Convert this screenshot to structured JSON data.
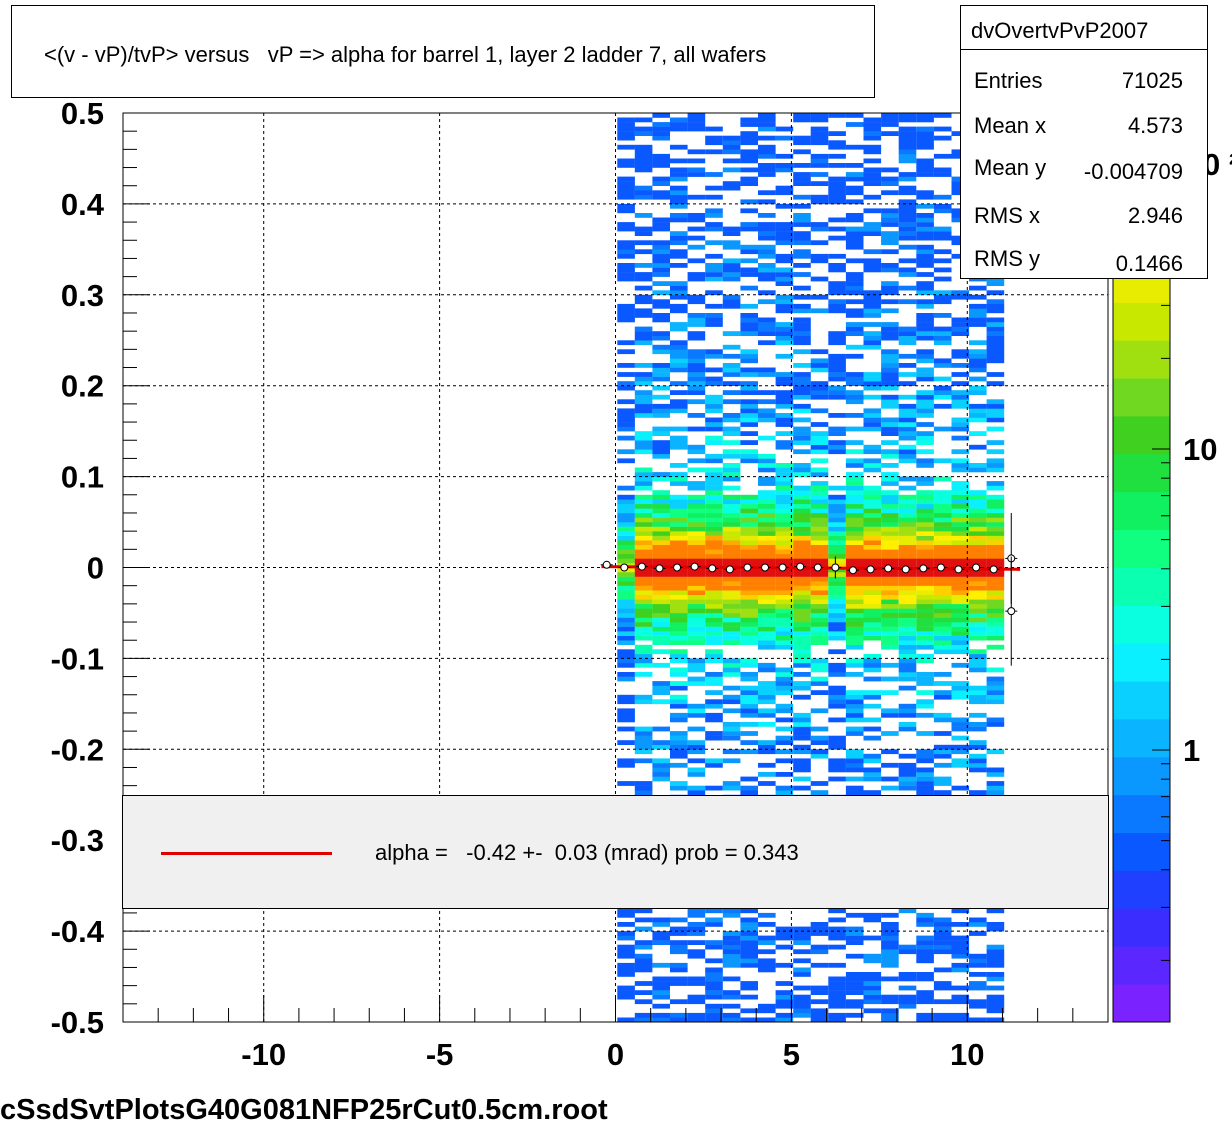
{
  "title": "<(v - vP)/tvP> versus   vP => alpha for barrel 1, layer 2 ladder 7, all wafers",
  "stats": {
    "name": "dvOvertvPvP2007",
    "rows": [
      {
        "label": "Entries",
        "value": "71025"
      },
      {
        "label": "Mean x",
        "value": "4.573"
      },
      {
        "label": "Mean y",
        "value": "-0.004709"
      },
      {
        "label": "RMS x",
        "value": "2.946"
      },
      {
        "label": "RMS y",
        "value": "0.1466"
      }
    ]
  },
  "legend": {
    "line_color": "#e00000",
    "text": "alpha =   -0.42 +-  0.03 (mrad) prob = 0.343"
  },
  "footer": "cSsdSvtPlotsG40G081NFP25rCut0.5cm.root",
  "chart_data": {
    "type": "heatmap",
    "xlim": [
      -14,
      14
    ],
    "ylim": [
      -0.5,
      0.5
    ],
    "x_ticks": [
      -10,
      -5,
      0,
      5,
      10
    ],
    "x_tick_labels": [
      "-10",
      "-5",
      "0",
      "5",
      "10"
    ],
    "y_ticks": [
      0.5,
      0.4,
      0.3,
      0.2,
      0.1,
      0,
      -0.1,
      -0.2,
      -0.3,
      -0.4,
      -0.5
    ],
    "y_tick_labels": [
      "0.5",
      "0.4",
      "0.3",
      "0.2",
      "0.1",
      "0",
      "-0.1",
      "-0.2",
      "-0.3",
      "-0.4",
      "-0.5"
    ],
    "grid": true,
    "z_scale": "log",
    "z_labels": [
      {
        "value": 1,
        "text": "1"
      },
      {
        "value": 10,
        "text": "10"
      }
    ],
    "z_partial_label": "0 ²",
    "palette": [
      "#7a22ff",
      "#5a28ff",
      "#3c2dff",
      "#2040ff",
      "#0a58ff",
      "#0a78ff",
      "#0a98ff",
      "#0ab4ff",
      "#0ad0ff",
      "#0af0ff",
      "#0affe0",
      "#0affb0",
      "#10ff80",
      "#10f060",
      "#20e040",
      "#40d020",
      "#70d820",
      "#a0e010",
      "#c8e800",
      "#e8ec00",
      "#fff000",
      "#ffd000",
      "#ffa800",
      "#ff8000"
    ],
    "occupied_x_range": [
      0.05,
      10.6
    ],
    "occupied_x_range_sparse": [
      10.6,
      11.0
    ],
    "gaps": [
      {
        "x_from": 6.1,
        "x_to": 6.45
      },
      {
        "x_from": 0.05,
        "x_to": 0.45,
        "note": "partial"
      }
    ],
    "profile_points": [
      {
        "x": -0.25,
        "y": 0.003,
        "err": 0.002
      },
      {
        "x": 0.25,
        "y": 0.0,
        "err": 0.003
      },
      {
        "x": 0.75,
        "y": 0.001,
        "err": 0.002
      },
      {
        "x": 1.25,
        "y": -0.001,
        "err": 0.002
      },
      {
        "x": 1.75,
        "y": 0.0,
        "err": 0.002
      },
      {
        "x": 2.25,
        "y": 0.001,
        "err": 0.002
      },
      {
        "x": 2.75,
        "y": -0.001,
        "err": 0.002
      },
      {
        "x": 3.25,
        "y": -0.002,
        "err": 0.002
      },
      {
        "x": 3.75,
        "y": 0.0,
        "err": 0.002
      },
      {
        "x": 4.25,
        "y": 0.0,
        "err": 0.002
      },
      {
        "x": 4.75,
        "y": 0.0,
        "err": 0.002
      },
      {
        "x": 5.25,
        "y": 0.001,
        "err": 0.002
      },
      {
        "x": 5.75,
        "y": 0.0,
        "err": 0.002
      },
      {
        "x": 6.25,
        "y": 0.0,
        "err": 0.012
      },
      {
        "x": 6.75,
        "y": -0.003,
        "err": 0.002
      },
      {
        "x": 7.25,
        "y": -0.002,
        "err": 0.002
      },
      {
        "x": 7.75,
        "y": -0.001,
        "err": 0.002
      },
      {
        "x": 8.25,
        "y": -0.002,
        "err": 0.002
      },
      {
        "x": 8.75,
        "y": -0.001,
        "err": 0.002
      },
      {
        "x": 9.25,
        "y": 0.0,
        "err": 0.002
      },
      {
        "x": 9.75,
        "y": -0.002,
        "err": 0.002
      },
      {
        "x": 10.25,
        "y": 0.0,
        "err": 0.002
      },
      {
        "x": 10.75,
        "y": -0.002,
        "err": 0.002
      },
      {
        "x": 11.25,
        "y": 0.01,
        "err": 0.05
      },
      {
        "x": 11.25,
        "y": -0.048,
        "err": 0.06
      }
    ],
    "fit_line": {
      "color": "#e00000",
      "x": [
        -0.4,
        11.5
      ],
      "y": [
        0.001,
        -0.002
      ]
    }
  }
}
